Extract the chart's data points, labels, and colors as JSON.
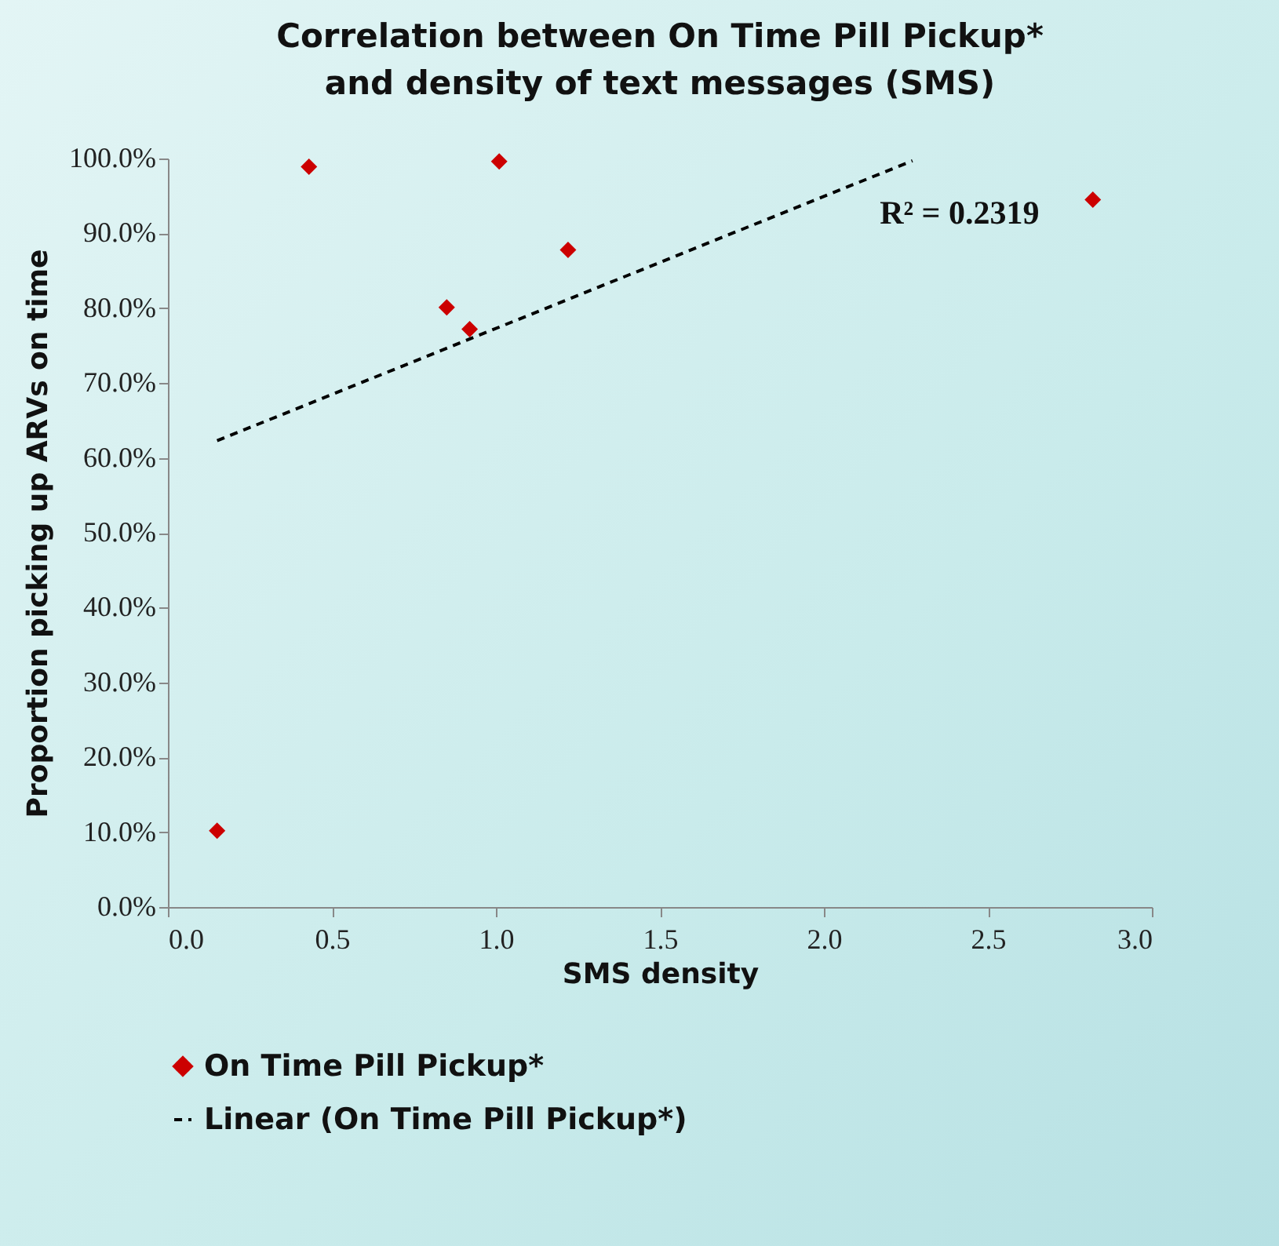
{
  "chart_data": {
    "type": "scatter",
    "title": "Correlation between On Time Pill Pickup*\nand density of text messages (SMS)",
    "xlabel": "SMS density",
    "ylabel": "Proportion picking up ARVs on time",
    "xlim": [
      0,
      3
    ],
    "xticks": [
      {
        "value": 0,
        "label": "0.0"
      },
      {
        "value": 0.5,
        "label": "0.5"
      },
      {
        "value": 1,
        "label": "1.0"
      },
      {
        "value": 1.5,
        "label": "1.5"
      },
      {
        "value": 2,
        "label": "2.0"
      },
      {
        "value": 2.5,
        "label": "2.5"
      },
      {
        "value": 3,
        "label": "3.0"
      }
    ],
    "ylim": [
      0,
      100
    ],
    "yticks": [
      {
        "value": 0,
        "label": "0.0%"
      },
      {
        "value": 10,
        "label": "10.0%"
      },
      {
        "value": 20,
        "label": "20.0%"
      },
      {
        "value": 30,
        "label": "30.0%"
      },
      {
        "value": 40,
        "label": "40.0%"
      },
      {
        "value": 50,
        "label": "50.0%"
      },
      {
        "value": 60,
        "label": "60.0%"
      },
      {
        "value": 70,
        "label": "70.0%"
      },
      {
        "value": 80,
        "label": "80.0%"
      },
      {
        "value": 90,
        "label": "90.0%"
      },
      {
        "value": 100,
        "label": "100.0%"
      }
    ],
    "series": [
      {
        "name": "On Time Pill Pickup*",
        "marker": "diamond",
        "color": "#cc0000",
        "x": [
          0.15,
          0.43,
          1.01,
          1.22,
          0.85,
          0.92,
          2.82
        ],
        "values": [
          10.2,
          98.9,
          99.6,
          87.8,
          80.1,
          77.2,
          94.5
        ]
      },
      {
        "name": "Linear (On Time Pill Pickup*)",
        "type": "line",
        "line_style": "dashed",
        "color": "#000000",
        "x": [
          0.15,
          2.27
        ],
        "values": [
          62.3,
          99.7
        ]
      }
    ],
    "annotations": [
      "R² = 0.2319"
    ],
    "grid": false,
    "legend": "bottom"
  }
}
